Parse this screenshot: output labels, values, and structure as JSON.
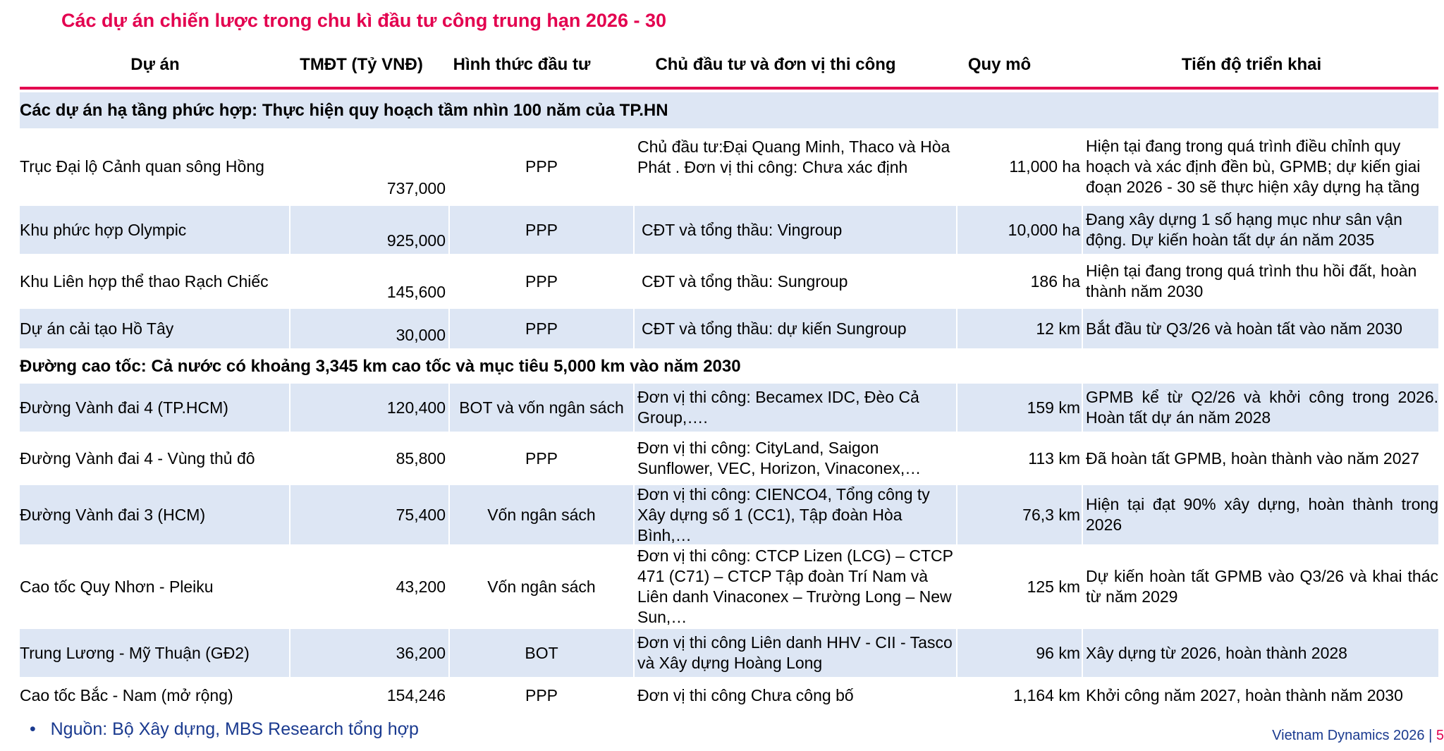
{
  "title": "Các dự án chiến lược trong chu kì đầu tư công trung hạn 2026 - 30",
  "headers": {
    "project": "Dự án",
    "tmdt": "TMĐT (Tỷ VNĐ)",
    "form": "Hình thức đầu tư",
    "owner": "Chủ đầu tư và đơn vị thi công",
    "scale": "Quy mô",
    "progress": "Tiến độ triển khai"
  },
  "sections": [
    {
      "title": "Các dự án hạ tầng phức hợp: Thực hiện quy hoạch tầm nhìn 100 năm của TP.HN",
      "rows": [
        {
          "name": "Trục Đại lộ Cảnh quan sông Hồng",
          "tmdt": "737,000",
          "form": "PPP",
          "owner": "Chủ đầu tư:Đại Quang Minh, Thaco và Hòa Phát . Đơn vị thi công: Chưa xác định",
          "scale": "11,000 ha",
          "progress": " Hiện tại đang trong quá trình điều chỉnh quy hoạch và xác định đền bù, GPMB; dự kiến giai đoạn 2026 - 30 sẽ thực hiện xây dựng hạ tầng"
        },
        {
          "name": "Khu phức hợp Olympic",
          "tmdt": "925,000",
          "form": "PPP",
          "owner": "CĐT và tổng thầu: Vingroup",
          "scale": "10,000 ha",
          "progress": " Đang xây dựng 1 số hạng mục như sân vận động. Dự kiến hoàn tất dự án năm 2035"
        },
        {
          "name": "Khu Liên hợp thể thao Rạch Chiếc",
          "tmdt": "145,600",
          "form": "PPP",
          "owner": "CĐT và tổng thầu: Sungroup",
          "scale": "186 ha",
          "progress": " Hiện tại đang trong quá trình thu hồi đất, hoàn thành năm 2030"
        },
        {
          "name": "Dự án cải tạo Hồ Tây",
          "tmdt": "30,000",
          "form": "PPP",
          "owner": "CĐT và tổng thầu: dự kiến Sungroup",
          "scale": "12 km",
          "progress": " Bắt đầu từ Q3/26 và hoàn tất vào năm 2030"
        }
      ]
    },
    {
      "title": "Đường cao tốc: Cả nước có khoảng 3,345 km cao tốc và mục tiêu 5,000 km vào năm 2030",
      "rows": [
        {
          "name": "Đường Vành đai 4 (TP.HCM)",
          "tmdt": "120,400",
          "form": "BOT và vốn ngân sách",
          "owner": "Đơn vị thi công: Becamex IDC, Đèo Cả Group,….",
          "scale": "159 km",
          "progress": "GPMB kể từ Q2/26 và khởi công trong 2026. Hoàn tất dự án năm 2028"
        },
        {
          "name": "Đường Vành đai 4 - Vùng thủ đô",
          "tmdt": "85,800",
          "form": "PPP",
          "owner": "Đơn vị thi công: CityLand, Saigon Sunflower, VEC, Horizon, Vinaconex,…",
          "scale": "113 km",
          "progress": "Đã hoàn tất GPMB, hoàn thành vào năm 2027"
        },
        {
          "name": "Đường Vành đai 3 (HCM)",
          "tmdt": "75,400",
          "form": "Vốn ngân sách",
          "owner": "Đơn vị thi công: CIENCO4, Tổng công ty Xây dựng số 1 (CC1), Tập đoàn Hòa Bình,…",
          "scale": "76,3 km",
          "progress": "Hiện tại đạt 90% xây dựng, hoàn thành trong 2026"
        },
        {
          "name": "Cao tốc Quy Nhơn - Pleiku",
          "tmdt": "43,200",
          "form": "Vốn ngân sách",
          "owner": "Đơn vị thi công: CTCP Lizen (LCG) – CTCP 471 (C71) – CTCP Tập đoàn Trí Nam và Liên danh Vinaconex – Trường Long – New Sun,…",
          "scale": "125 km",
          "progress": "Dự kiến hoàn tất GPMB vào Q3/26 và khai thác từ năm 2029"
        },
        {
          "name": "Trung Lương - Mỹ Thuận (GĐ2)",
          "tmdt": "36,200",
          "form": "BOT",
          "owner": "Đơn vị thi công Liên danh HHV - CII - Tasco và Xây dựng Hoàng Long",
          "scale": "96 km",
          "progress": "Xây dựng từ 2026, hoàn thành  2028"
        },
        {
          "name": "Cao tốc Bắc - Nam (mở rộng)",
          "tmdt": "154,246",
          "form": "PPP",
          "owner": "Đơn vị thi công Chưa công bố",
          "scale": "1,164 km",
          "progress": "Khởi công năm 2027, hoàn thành năm 2030"
        }
      ]
    }
  ],
  "source": "Nguồn: Bộ Xây dựng, MBS Research tổng hợp",
  "source_bullet": "•",
  "footer": {
    "brand": "Vietnam Dynamics 2026",
    "separator": "|",
    "page": "5"
  }
}
